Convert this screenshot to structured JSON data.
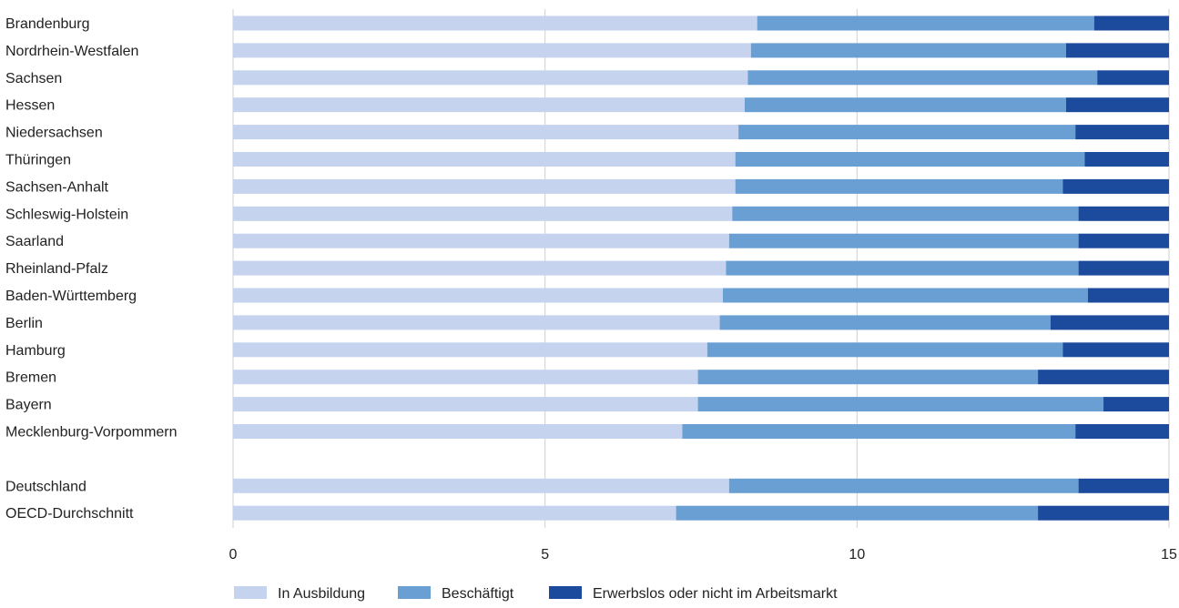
{
  "chart_data": {
    "type": "bar",
    "orientation": "horizontal",
    "stacked": true,
    "title": "",
    "xlabel": "",
    "ylabel": "",
    "xlim": [
      0,
      15
    ],
    "xticks": [
      0,
      5,
      10,
      15
    ],
    "grid": true,
    "legend_position": "bottom",
    "categories": [
      "Brandenburg",
      "Nordrhein-Westfalen",
      "Sachsen",
      "Hessen",
      "Niedersachsen",
      "Thüringen",
      "Sachsen-Anhalt",
      "Schleswig-Holstein",
      "Saarland",
      "Rheinland-Pfalz",
      "Baden-Württemberg",
      "Berlin",
      "Hamburg",
      "Bremen",
      "Bayern",
      "Mecklenburg-Vorpommern",
      "Deutschland",
      "OECD-Durchschnitt"
    ],
    "group_gap_before": "Deutschland",
    "series": [
      {
        "name": "In Ausbildung",
        "color": "#c5d3ee",
        "values": [
          8.4,
          8.3,
          8.25,
          8.2,
          8.1,
          8.05,
          8.05,
          8.0,
          7.95,
          7.9,
          7.85,
          7.8,
          7.6,
          7.45,
          7.45,
          7.2,
          7.95,
          7.1
        ]
      },
      {
        "name": "Beschäftigt",
        "color": "#6a9fd4",
        "values": [
          5.4,
          5.05,
          5.6,
          5.15,
          5.4,
          5.6,
          5.25,
          5.55,
          5.6,
          5.65,
          5.85,
          5.3,
          5.7,
          5.45,
          6.5,
          6.3,
          5.6,
          5.8
        ]
      },
      {
        "name": "Erwerbslos oder nicht im Arbeitsmarkt",
        "color": "#1c4a9c",
        "values": [
          1.2,
          1.65,
          1.15,
          1.65,
          1.5,
          1.35,
          1.7,
          1.45,
          1.45,
          1.45,
          1.3,
          1.9,
          1.7,
          2.1,
          1.05,
          1.5,
          1.45,
          2.1
        ]
      }
    ]
  }
}
